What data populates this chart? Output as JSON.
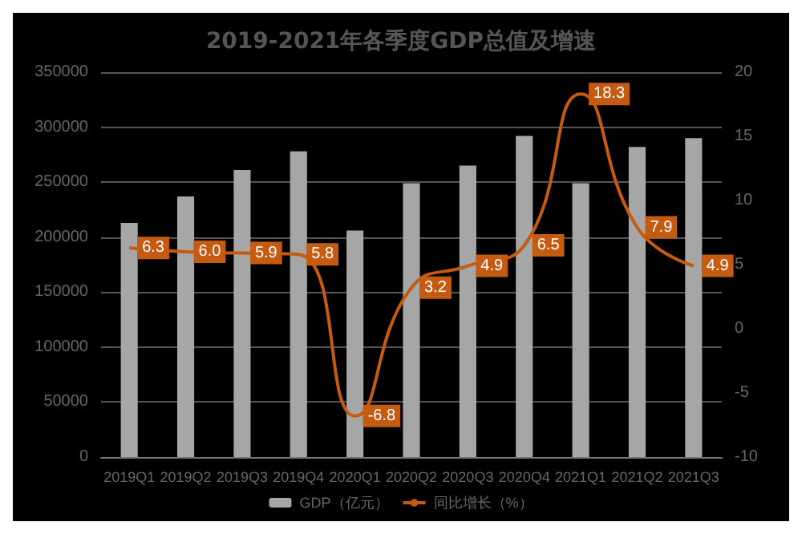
{
  "chart_data": {
    "type": "bar",
    "title": "2019-2021年各季度GDP总值及增速",
    "categories": [
      "2019Q1",
      "2019Q2",
      "2019Q3",
      "2019Q4",
      "2020Q1",
      "2020Q2",
      "2020Q3",
      "2020Q4",
      "2021Q1",
      "2021Q2",
      "2021Q3"
    ],
    "series": [
      {
        "name": "GDP（亿元）",
        "color": "#a6a6a6",
        "values": [
          213000,
          237000,
          261000,
          278000,
          206000,
          249000,
          265000,
          292000,
          249000,
          282000,
          290000
        ]
      },
      {
        "name": "同比增长（%）",
        "type": "line",
        "axis": "y2",
        "color": "#c55a11",
        "values": [
          6.3,
          6.0,
          5.9,
          5.8,
          -6.8,
          3.2,
          4.9,
          6.5,
          18.3,
          7.9,
          4.9
        ],
        "value_labels": [
          "6.3",
          "6.0",
          "5.9",
          "5.8",
          "-6.8",
          "3.2",
          "4.9",
          "6.5",
          "18.3",
          "7.9",
          "4.9"
        ]
      }
    ],
    "ylim": [
      0,
      350000
    ],
    "yticks": [
      0,
      50000,
      100000,
      150000,
      200000,
      250000,
      300000,
      350000
    ],
    "y2lim": [
      -10,
      20
    ],
    "y2ticks": [
      -10,
      -5,
      0,
      5,
      10,
      15,
      20
    ],
    "grid": "y",
    "legend": "bottom",
    "marker": "none"
  }
}
